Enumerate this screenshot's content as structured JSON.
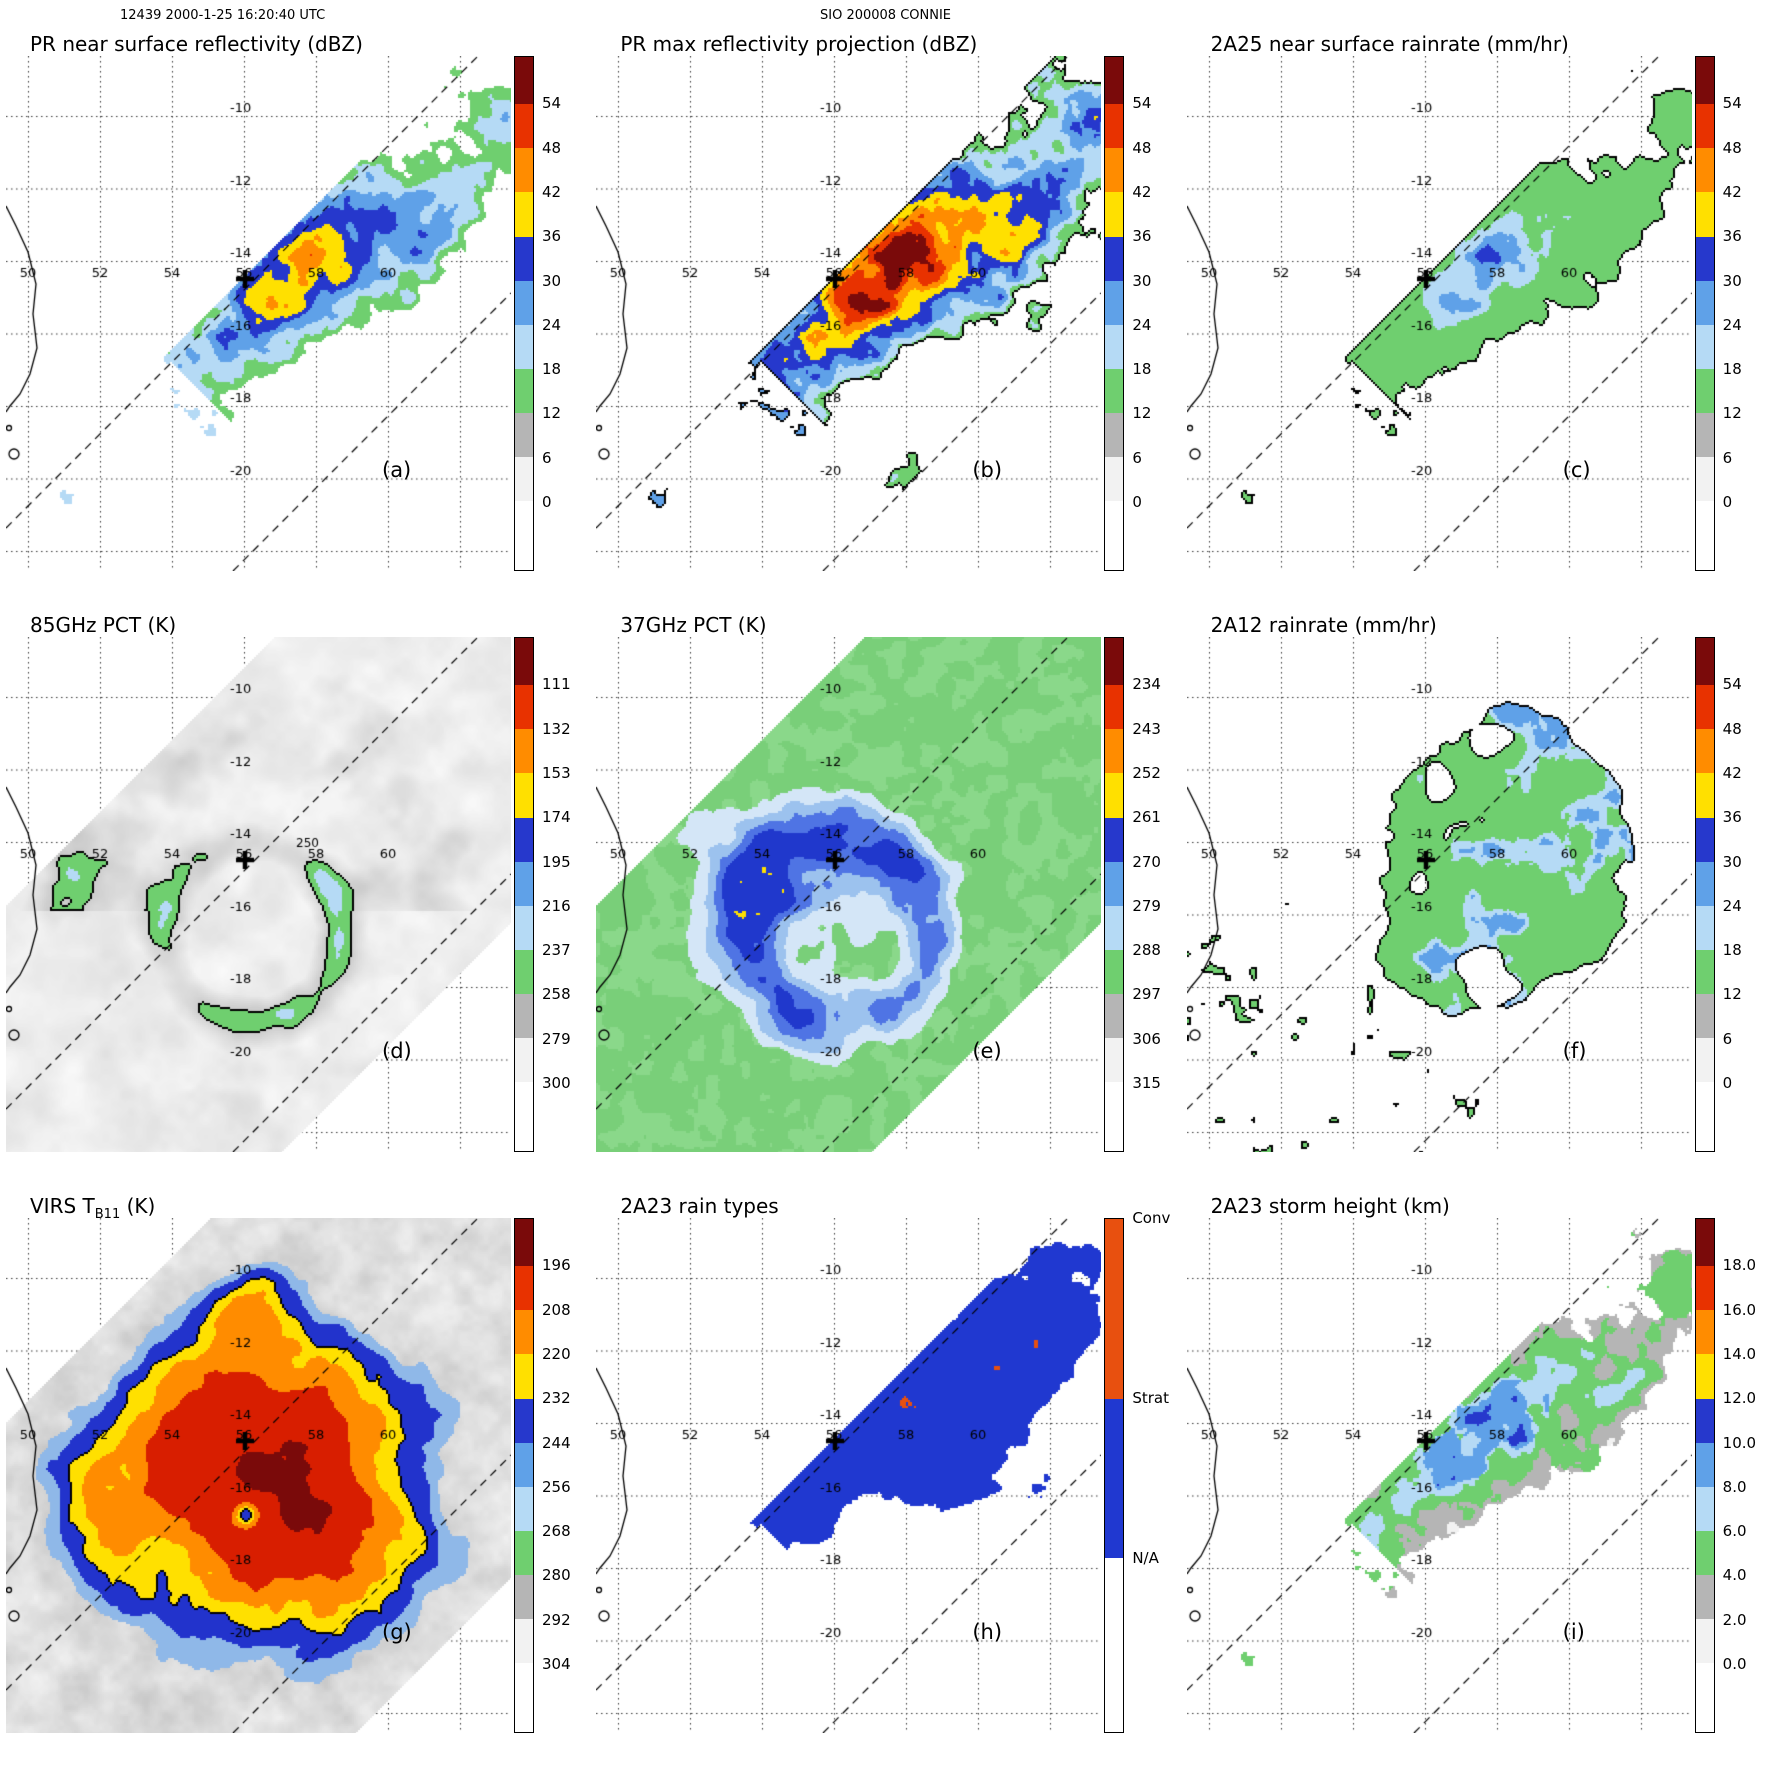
{
  "header": {
    "left": "12439 2000-1-25 16:20:40 UTC",
    "center": "SIO 200008 CONNIE"
  },
  "colors": {
    "palette": [
      "#ffffff",
      "#f2f2f2",
      "#b5b5b5",
      "#6fcf6f",
      "#b5daf5",
      "#5fa1e8",
      "#2638cc",
      "#ffe000",
      "#ff8c00",
      "#e83200",
      "#7a0a0a"
    ],
    "rain_types": {
      "conv": "#e8500f",
      "strat": "#2038d0",
      "na": "#ffffff"
    },
    "grid": "#333333",
    "coast": "#000000",
    "marker": "#000000"
  },
  "chart_data": {
    "type": "heatmap",
    "layout": "3x3 grid of satellite swath map panels sharing the same lat/lon domain",
    "x": {
      "tick_labels": [
        "50",
        "52",
        "54",
        "56",
        "58",
        "60"
      ]
    },
    "y": {
      "tick_labels": [
        "-10",
        "-12",
        "-14",
        "-16",
        "-18",
        "-20"
      ]
    },
    "storm_center_marker": {
      "lon": 56.0,
      "lat": -14.5
    },
    "swath": {
      "boundary_style": "dashed",
      "note": "diagonal SW-to-NE satellite swath edges"
    },
    "panels": [
      {
        "key": "a",
        "letter": "(a)",
        "title_parts": {
          "main": "PR near surface reflectivity (dBZ)",
          "sub": "",
          "unit": ""
        },
        "colorbar": {
          "kind": "scale",
          "unit": "dBZ",
          "tick_labels": [
            "54",
            "48",
            "42",
            "36",
            "30",
            "24",
            "18",
            "12",
            "6",
            "0"
          ]
        }
      },
      {
        "key": "b",
        "letter": "(b)",
        "title_parts": {
          "main": "PR max reflectivity projection (dBZ)",
          "sub": "",
          "unit": ""
        },
        "colorbar": {
          "kind": "scale",
          "unit": "dBZ",
          "tick_labels": [
            "54",
            "48",
            "42",
            "36",
            "30",
            "24",
            "18",
            "12",
            "6",
            "0"
          ]
        }
      },
      {
        "key": "c",
        "letter": "(c)",
        "title_parts": {
          "main": "2A25 near surface rainrate (mm/hr)",
          "sub": "",
          "unit": ""
        },
        "colorbar": {
          "kind": "scale",
          "unit": "mm/hr",
          "tick_labels": [
            "54",
            "48",
            "42",
            "36",
            "30",
            "24",
            "18",
            "12",
            "6",
            "0"
          ]
        }
      },
      {
        "key": "d",
        "letter": "(d)",
        "title_parts": {
          "main": "85GHz PCT (K)",
          "sub": "",
          "unit": ""
        },
        "colorbar": {
          "kind": "scale",
          "unit": "K",
          "tick_labels": [
            "111",
            "132",
            "153",
            "174",
            "195",
            "216",
            "237",
            "258",
            "279",
            "300"
          ]
        },
        "annotations": [
          {
            "text": "250"
          }
        ]
      },
      {
        "key": "e",
        "letter": "(e)",
        "title_parts": {
          "main": "37GHz PCT (K)",
          "sub": "",
          "unit": ""
        },
        "colorbar": {
          "kind": "scale",
          "unit": "K",
          "tick_labels": [
            "234",
            "243",
            "252",
            "261",
            "270",
            "279",
            "288",
            "297",
            "306",
            "315"
          ]
        }
      },
      {
        "key": "f",
        "letter": "(f)",
        "title_parts": {
          "main": "2A12 rainrate (mm/hr)",
          "sub": "",
          "unit": ""
        },
        "colorbar": {
          "kind": "scale",
          "unit": "mm/hr",
          "tick_labels": [
            "54",
            "48",
            "42",
            "36",
            "30",
            "24",
            "18",
            "12",
            "6",
            "0"
          ]
        }
      },
      {
        "key": "g",
        "letter": "(g)",
        "title_parts": {
          "main": "VIRS T",
          "sub": "B11",
          "unit": " (K)"
        },
        "colorbar": {
          "kind": "scale",
          "unit": "K",
          "tick_labels": [
            "196",
            "208",
            "220",
            "232",
            "244",
            "256",
            "268",
            "280",
            "292",
            "304"
          ]
        }
      },
      {
        "key": "h",
        "letter": "(h)",
        "title_parts": {
          "main": "2A23 rain types",
          "sub": "",
          "unit": ""
        },
        "colorbar": {
          "kind": "categories",
          "categories": [
            {
              "label": "Conv",
              "color": "#e8500f",
              "span": 0.35
            },
            {
              "label": "Strat",
              "color": "#2038d0",
              "span": 0.31
            },
            {
              "label": "N/A",
              "color": "#ffffff",
              "span": 0.34
            }
          ]
        }
      },
      {
        "key": "i",
        "letter": "(i)",
        "title_parts": {
          "main": "2A23 storm height (km)",
          "sub": "",
          "unit": ""
        },
        "colorbar": {
          "kind": "scale",
          "unit": "km",
          "tick_labels": [
            "18.0",
            "16.0",
            "14.0",
            "12.0",
            "10.0",
            "8.0",
            "6.0",
            "4.0",
            "2.0",
            "0.0"
          ]
        }
      }
    ]
  }
}
